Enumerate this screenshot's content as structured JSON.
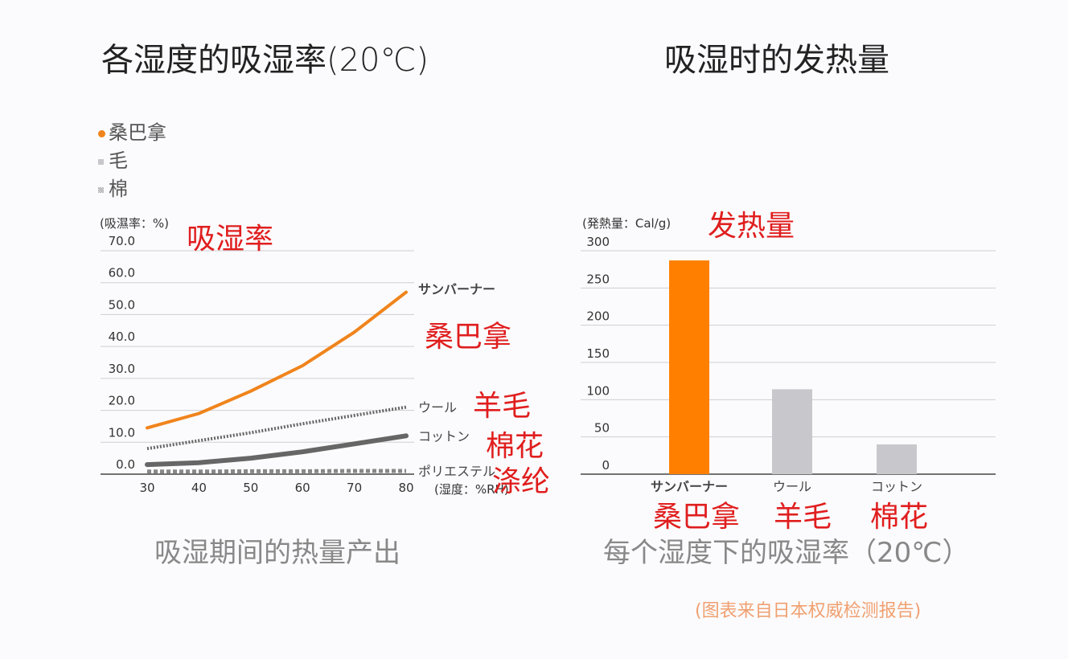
{
  "titles": {
    "left": "各湿度的吸湿率(20℃)",
    "right": "吸湿时的发热量"
  },
  "legend": [
    {
      "label": "桑巴拿",
      "color": "#f0841c",
      "marker": "dot"
    },
    {
      "label": "毛",
      "color": "#c8c8cc",
      "marker": "square"
    },
    {
      "label": "棉",
      "color": "#b0b0b4",
      "marker": "hatched-square"
    }
  ],
  "annotations": {
    "left_ylabel_cn": "吸湿率",
    "sanbarna": "桑巴拿",
    "wool": "羊毛",
    "cotton": "棉花",
    "polyester": "涤纶",
    "right_ylabel_cn": "发热量",
    "bar_sanbarna": "桑巴拿",
    "bar_wool": "羊毛",
    "bar_cotton": "棉花"
  },
  "subtitles": {
    "left": "吸湿期间的热量产出",
    "right": "每个湿度下的吸湿率（20℃）"
  },
  "source_note": "(图表来自日本权威检测报告)",
  "colors": {
    "orange": "#f0841c",
    "gray": "#c8c8cc",
    "dark": "#666666",
    "annotation": "#e01e1e"
  },
  "chart_data": [
    {
      "type": "line",
      "ylabel": "(吸濕率：%)",
      "xlabel": "(湿度：%RH)",
      "x": [
        30,
        40,
        50,
        60,
        70,
        80
      ],
      "xticks": [
        "30",
        "40",
        "50",
        "60",
        "70",
        "80"
      ],
      "yticks": [
        "0.0",
        "10.0",
        "20.0",
        "30.0",
        "40.0",
        "50.0",
        "60.0",
        "70.0"
      ],
      "ylim": [
        0,
        70
      ],
      "grid": true,
      "series": [
        {
          "name": "サンバーナー",
          "values": [
            14.5,
            19,
            26,
            34,
            44.5,
            57
          ],
          "color": "#f0841c",
          "style": "solid"
        },
        {
          "name": "ウール",
          "values": [
            8,
            10.5,
            13,
            15.8,
            18.4,
            21
          ],
          "color": "#666666",
          "style": "dotted"
        },
        {
          "name": "コットン",
          "values": [
            3,
            3.6,
            5,
            7,
            9.5,
            12
          ],
          "color": "#666666",
          "style": "solid"
        },
        {
          "name": "ポリエステル",
          "values": [
            0.8,
            0.8,
            0.9,
            0.9,
            1,
            1
          ],
          "color": "#888888",
          "style": "dashed"
        }
      ]
    },
    {
      "type": "bar",
      "ylabel": "(発熱量：Cal/g)",
      "categories": [
        "サンバーナー",
        "ウール",
        "コットン"
      ],
      "values": [
        287,
        114,
        40
      ],
      "colors": [
        "#ff8000",
        "#c8c8cc",
        "#c8c8cc"
      ],
      "yticks": [
        "0",
        "50",
        "100",
        "150",
        "200",
        "250",
        "300"
      ],
      "ylim": [
        0,
        300
      ],
      "grid": true
    }
  ]
}
